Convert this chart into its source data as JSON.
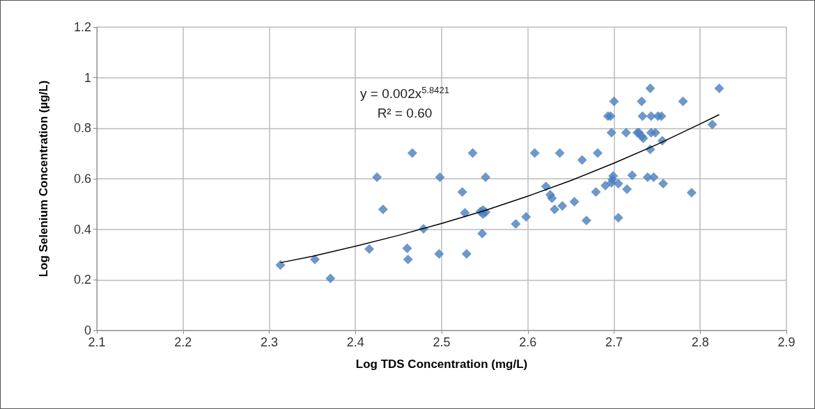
{
  "chart_data": {
    "type": "scatter",
    "xlabel": "Log TDS Concentration (mg/L)",
    "ylabel": "Log Selenium Concentration (µg/L)",
    "xlim": [
      2.1,
      2.9
    ],
    "xticks": [
      2.1,
      2.2,
      2.3,
      2.4,
      2.5,
      2.6,
      2.7,
      2.8,
      2.9
    ],
    "ylim": [
      0,
      1.2
    ],
    "yticks": [
      0,
      0.2,
      0.4,
      0.6,
      0.8,
      1,
      1.2
    ],
    "grid": true,
    "marker": "diamond",
    "annotations": [
      "y = 0.002x$^{5.8421}$",
      "R² = 0.60"
    ],
    "series": [
      {
        "color": "#4a7ebb",
        "x": [
          2.313,
          2.353,
          2.371,
          2.416,
          2.425,
          2.432,
          2.46,
          2.461,
          2.466,
          2.479,
          2.497,
          2.498,
          2.524,
          2.527,
          2.529,
          2.536,
          2.547,
          2.545,
          2.548,
          2.551,
          2.548,
          2.551,
          2.586,
          2.598,
          2.608,
          2.621,
          2.626,
          2.628,
          2.631,
          2.637,
          2.64,
          2.654,
          2.663,
          2.668,
          2.679,
          2.681,
          2.69,
          2.693,
          2.696,
          2.697,
          2.698,
          2.697,
          2.699,
          2.7,
          2.705,
          2.705,
          2.714,
          2.715,
          2.721,
          2.727,
          2.729,
          2.732,
          2.734,
          2.732,
          2.733,
          2.739,
          2.742,
          2.746,
          2.742,
          2.743,
          2.751,
          2.755,
          2.743,
          2.748,
          2.756,
          2.757,
          2.78,
          2.79,
          2.814,
          2.822
        ],
        "values": [
          0.259,
          0.281,
          0.206,
          0.322,
          0.606,
          0.479,
          0.325,
          0.281,
          0.702,
          0.402,
          0.303,
          0.606,
          0.548,
          0.465,
          0.303,
          0.702,
          0.383,
          0.47,
          0.476,
          0.468,
          0.46,
          0.606,
          0.421,
          0.449,
          0.702,
          0.57,
          0.537,
          0.523,
          0.479,
          0.702,
          0.493,
          0.509,
          0.674,
          0.435,
          0.548,
          0.702,
          0.573,
          0.848,
          0.848,
          0.782,
          0.597,
          0.584,
          0.611,
          0.906,
          0.446,
          0.581,
          0.782,
          0.559,
          0.614,
          0.782,
          0.782,
          0.768,
          0.76,
          0.906,
          0.848,
          0.606,
          0.716,
          0.606,
          0.958,
          0.848,
          0.848,
          0.848,
          0.782,
          0.782,
          0.751,
          0.581,
          0.906,
          0.545,
          0.815,
          0.958
        ]
      },
      {
        "type": "line",
        "color": "#000000",
        "marker": "none",
        "x": [
          2.313,
          2.35,
          2.4,
          2.45,
          2.5,
          2.55,
          2.6,
          2.65,
          2.7,
          2.75,
          2.8,
          2.822
        ],
        "values": [
          0.268,
          0.293,
          0.333,
          0.376,
          0.423,
          0.474,
          0.531,
          0.593,
          0.662,
          0.736,
          0.817,
          0.854
        ]
      }
    ]
  }
}
